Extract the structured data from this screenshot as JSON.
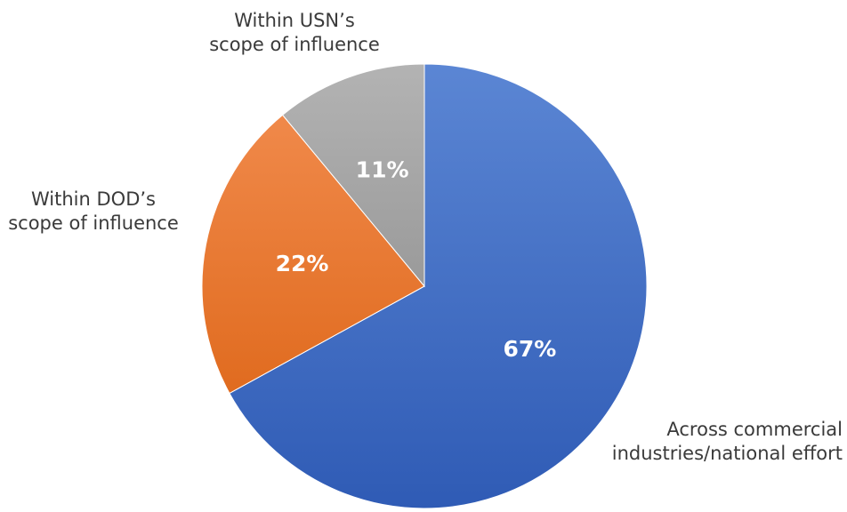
{
  "chart_data": {
    "type": "pie",
    "title": "",
    "slices": [
      {
        "category": "Across commercial industries/national effort",
        "category_lines": [
          "Across commercial",
          "industries/national effort"
        ],
        "value": 67,
        "label": "67%",
        "color": "#4472C4"
      },
      {
        "category": "Within DOD's scope of influence",
        "category_lines": [
          "Within DOD’s",
          "scope of influence"
        ],
        "value": 22,
        "label": "22%",
        "color": "#ED7D31"
      },
      {
        "category": "Within USN's scope of influence",
        "category_lines": [
          "Within USN’s",
          "scope of influence"
        ],
        "value": 11,
        "label": "11%",
        "color": "#A5A5A5"
      }
    ],
    "start_angle_deg": 0,
    "direction": "clockwise",
    "legend": "none"
  }
}
